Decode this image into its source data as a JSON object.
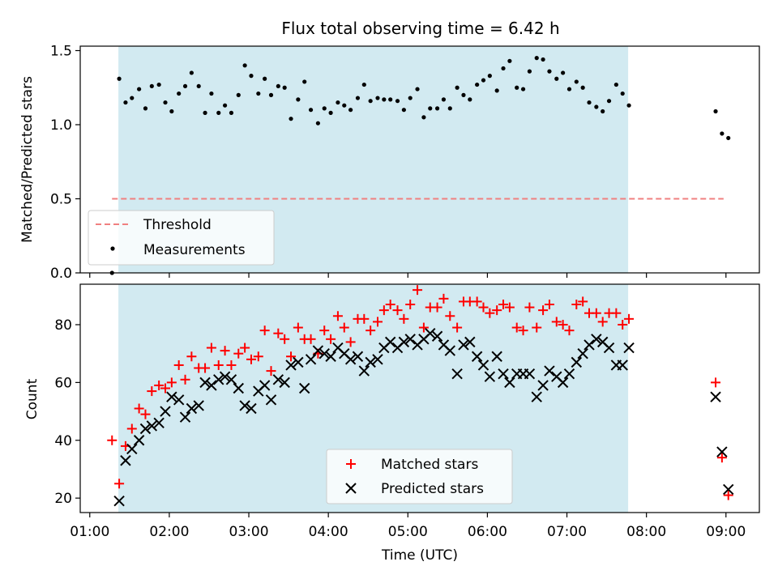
{
  "title": "Flux total observing time = 6.42 h",
  "colors": {
    "shade": "#add8e6",
    "threshold": "#f08080",
    "matched": "#ff0000",
    "predicted": "#000000",
    "measurements": "#000000"
  },
  "chart_data": [
    {
      "type": "scatter",
      "ylabel": "Matched/Predicted stars",
      "xlabel": "",
      "xlim": [
        0.88,
        9.42
      ],
      "ylim": [
        0,
        1.53
      ],
      "yticks": [
        0,
        0.5,
        1.0,
        1.5
      ],
      "ytick_labels": [
        "0.0",
        "0.5",
        "1.0",
        "1.5"
      ],
      "shaded_span": [
        1.36,
        7.77
      ],
      "threshold": {
        "name": "Threshold",
        "y": 0.5,
        "x": [
          1.28,
          8.97
        ]
      },
      "legend": {
        "position": "lower-left",
        "entries": [
          "Threshold",
          "Measurements"
        ]
      },
      "series": [
        {
          "name": "Measurements",
          "marker": "dot",
          "points": [
            [
              1.28,
              0.0
            ],
            [
              1.37,
              1.31
            ],
            [
              1.45,
              1.15
            ],
            [
              1.53,
              1.18
            ],
            [
              1.62,
              1.24
            ],
            [
              1.7,
              1.11
            ],
            [
              1.78,
              1.26
            ],
            [
              1.87,
              1.27
            ],
            [
              1.95,
              1.15
            ],
            [
              2.03,
              1.09
            ],
            [
              2.12,
              1.21
            ],
            [
              2.2,
              1.26
            ],
            [
              2.28,
              1.35
            ],
            [
              2.37,
              1.26
            ],
            [
              2.45,
              1.08
            ],
            [
              2.53,
              1.21
            ],
            [
              2.62,
              1.08
            ],
            [
              2.7,
              1.13
            ],
            [
              2.78,
              1.08
            ],
            [
              2.87,
              1.2
            ],
            [
              2.95,
              1.4
            ],
            [
              3.03,
              1.33
            ],
            [
              3.12,
              1.21
            ],
            [
              3.2,
              1.31
            ],
            [
              3.28,
              1.2
            ],
            [
              3.37,
              1.26
            ],
            [
              3.45,
              1.25
            ],
            [
              3.53,
              1.04
            ],
            [
              3.62,
              1.17
            ],
            [
              3.7,
              1.29
            ],
            [
              3.78,
              1.1
            ],
            [
              3.87,
              1.01
            ],
            [
              3.95,
              1.11
            ],
            [
              4.03,
              1.08
            ],
            [
              4.12,
              1.15
            ],
            [
              4.2,
              1.13
            ],
            [
              4.28,
              1.1
            ],
            [
              4.37,
              1.18
            ],
            [
              4.45,
              1.27
            ],
            [
              4.53,
              1.16
            ],
            [
              4.62,
              1.18
            ],
            [
              4.7,
              1.17
            ],
            [
              4.78,
              1.17
            ],
            [
              4.87,
              1.16
            ],
            [
              4.95,
              1.1
            ],
            [
              5.03,
              1.18
            ],
            [
              5.12,
              1.24
            ],
            [
              5.2,
              1.05
            ],
            [
              5.28,
              1.11
            ],
            [
              5.37,
              1.11
            ],
            [
              5.45,
              1.17
            ],
            [
              5.53,
              1.11
            ],
            [
              5.62,
              1.25
            ],
            [
              5.7,
              1.2
            ],
            [
              5.78,
              1.17
            ],
            [
              5.87,
              1.27
            ],
            [
              5.95,
              1.3
            ],
            [
              6.03,
              1.33
            ],
            [
              6.12,
              1.23
            ],
            [
              6.2,
              1.38
            ],
            [
              6.28,
              1.43
            ],
            [
              6.37,
              1.25
            ],
            [
              6.45,
              1.24
            ],
            [
              6.53,
              1.36
            ],
            [
              6.62,
              1.45
            ],
            [
              6.7,
              1.44
            ],
            [
              6.78,
              1.36
            ],
            [
              6.87,
              1.31
            ],
            [
              6.95,
              1.35
            ],
            [
              7.03,
              1.24
            ],
            [
              7.12,
              1.29
            ],
            [
              7.2,
              1.25
            ],
            [
              7.28,
              1.15
            ],
            [
              7.37,
              1.12
            ],
            [
              7.45,
              1.09
            ],
            [
              7.53,
              1.16
            ],
            [
              7.62,
              1.27
            ],
            [
              7.7,
              1.21
            ],
            [
              7.78,
              1.13
            ],
            [
              8.87,
              1.09
            ],
            [
              8.95,
              0.94
            ],
            [
              9.03,
              0.91
            ]
          ]
        }
      ]
    },
    {
      "type": "scatter",
      "ylabel": "Count",
      "xlabel": "Time (UTC)",
      "xlim": [
        0.88,
        9.42
      ],
      "ylim": [
        15,
        94
      ],
      "yticks": [
        20,
        40,
        60,
        80
      ],
      "xticks": [
        1,
        2,
        3,
        4,
        5,
        6,
        7,
        8,
        9
      ],
      "xtick_labels": [
        "01:00",
        "02:00",
        "03:00",
        "04:00",
        "05:00",
        "06:00",
        "07:00",
        "08:00",
        "09:00"
      ],
      "shaded_span": [
        1.36,
        7.77
      ],
      "legend": {
        "position": "lower-center",
        "entries": [
          "Matched stars",
          "Predicted stars"
        ]
      },
      "series": [
        {
          "name": "Matched stars",
          "marker": "plus",
          "points": [
            [
              1.28,
              40
            ],
            [
              1.37,
              25
            ],
            [
              1.45,
              38
            ],
            [
              1.53,
              44
            ],
            [
              1.62,
              51
            ],
            [
              1.7,
              49
            ],
            [
              1.78,
              57
            ],
            [
              1.87,
              59
            ],
            [
              1.95,
              58
            ],
            [
              2.03,
              60
            ],
            [
              2.12,
              66
            ],
            [
              2.2,
              61
            ],
            [
              2.28,
              69
            ],
            [
              2.37,
              65
            ],
            [
              2.45,
              65
            ],
            [
              2.53,
              72
            ],
            [
              2.62,
              66
            ],
            [
              2.7,
              71
            ],
            [
              2.78,
              66
            ],
            [
              2.87,
              70
            ],
            [
              2.95,
              72
            ],
            [
              3.03,
              68
            ],
            [
              3.12,
              69
            ],
            [
              3.2,
              78
            ],
            [
              3.28,
              64
            ],
            [
              3.37,
              77
            ],
            [
              3.45,
              75
            ],
            [
              3.53,
              69
            ],
            [
              3.62,
              79
            ],
            [
              3.7,
              75
            ],
            [
              3.78,
              75
            ],
            [
              3.87,
              70
            ],
            [
              3.95,
              78
            ],
            [
              4.03,
              75
            ],
            [
              4.12,
              83
            ],
            [
              4.2,
              79
            ],
            [
              4.28,
              74
            ],
            [
              4.37,
              82
            ],
            [
              4.45,
              82
            ],
            [
              4.53,
              78
            ],
            [
              4.62,
              81
            ],
            [
              4.7,
              85
            ],
            [
              4.78,
              87
            ],
            [
              4.87,
              85
            ],
            [
              4.95,
              82
            ],
            [
              5.03,
              87
            ],
            [
              5.12,
              92
            ],
            [
              5.2,
              79
            ],
            [
              5.28,
              86
            ],
            [
              5.37,
              86
            ],
            [
              5.45,
              89
            ],
            [
              5.53,
              83
            ],
            [
              5.62,
              79
            ],
            [
              5.7,
              88
            ],
            [
              5.78,
              88
            ],
            [
              5.87,
              88
            ],
            [
              5.95,
              86
            ],
            [
              6.03,
              84
            ],
            [
              6.12,
              85
            ],
            [
              6.2,
              87
            ],
            [
              6.28,
              86
            ],
            [
              6.37,
              79
            ],
            [
              6.45,
              78
            ],
            [
              6.53,
              86
            ],
            [
              6.62,
              79
            ],
            [
              6.7,
              85
            ],
            [
              6.78,
              87
            ],
            [
              6.87,
              81
            ],
            [
              6.95,
              80
            ],
            [
              7.03,
              78
            ],
            [
              7.12,
              87
            ],
            [
              7.2,
              88
            ],
            [
              7.28,
              84
            ],
            [
              7.37,
              84
            ],
            [
              7.45,
              81
            ],
            [
              7.53,
              84
            ],
            [
              7.62,
              84
            ],
            [
              7.7,
              80
            ],
            [
              7.78,
              82
            ],
            [
              8.87,
              60
            ],
            [
              8.95,
              34
            ],
            [
              9.03,
              21
            ]
          ]
        },
        {
          "name": "Predicted stars",
          "marker": "x",
          "points": [
            [
              1.37,
              19
            ],
            [
              1.45,
              33
            ],
            [
              1.53,
              37
            ],
            [
              1.62,
              40
            ],
            [
              1.7,
              44
            ],
            [
              1.78,
              45
            ],
            [
              1.87,
              46
            ],
            [
              1.95,
              50
            ],
            [
              2.03,
              55
            ],
            [
              2.12,
              54
            ],
            [
              2.2,
              48
            ],
            [
              2.28,
              51
            ],
            [
              2.37,
              52
            ],
            [
              2.45,
              60
            ],
            [
              2.53,
              59
            ],
            [
              2.62,
              61
            ],
            [
              2.7,
              62
            ],
            [
              2.78,
              61
            ],
            [
              2.87,
              58
            ],
            [
              2.95,
              52
            ],
            [
              3.03,
              51
            ],
            [
              3.12,
              57
            ],
            [
              3.2,
              59
            ],
            [
              3.28,
              54
            ],
            [
              3.37,
              61
            ],
            [
              3.45,
              60
            ],
            [
              3.53,
              66
            ],
            [
              3.62,
              67
            ],
            [
              3.7,
              58
            ],
            [
              3.78,
              68
            ],
            [
              3.87,
              71
            ],
            [
              3.95,
              70
            ],
            [
              4.03,
              69
            ],
            [
              4.12,
              72
            ],
            [
              4.2,
              70
            ],
            [
              4.28,
              68
            ],
            [
              4.37,
              69
            ],
            [
              4.45,
              64
            ],
            [
              4.53,
              67
            ],
            [
              4.62,
              68
            ],
            [
              4.7,
              72
            ],
            [
              4.78,
              74
            ],
            [
              4.87,
              72
            ],
            [
              4.95,
              74
            ],
            [
              5.03,
              75
            ],
            [
              5.12,
              73
            ],
            [
              5.2,
              75
            ],
            [
              5.28,
              77
            ],
            [
              5.37,
              76
            ],
            [
              5.45,
              73
            ],
            [
              5.53,
              71
            ],
            [
              5.62,
              63
            ],
            [
              5.7,
              73
            ],
            [
              5.78,
              74
            ],
            [
              5.87,
              69
            ],
            [
              5.95,
              66
            ],
            [
              6.03,
              62
            ],
            [
              6.12,
              69
            ],
            [
              6.2,
              63
            ],
            [
              6.28,
              60
            ],
            [
              6.37,
              63
            ],
            [
              6.45,
              63
            ],
            [
              6.53,
              63
            ],
            [
              6.62,
              55
            ],
            [
              6.7,
              59
            ],
            [
              6.78,
              64
            ],
            [
              6.87,
              62
            ],
            [
              6.95,
              60
            ],
            [
              7.03,
              63
            ],
            [
              7.12,
              67
            ],
            [
              7.2,
              70
            ],
            [
              7.28,
              73
            ],
            [
              7.37,
              75
            ],
            [
              7.45,
              74
            ],
            [
              7.53,
              72
            ],
            [
              7.62,
              66
            ],
            [
              7.7,
              66
            ],
            [
              7.78,
              72
            ],
            [
              8.87,
              55
            ],
            [
              8.95,
              36
            ],
            [
              9.03,
              23
            ]
          ]
        }
      ]
    }
  ]
}
